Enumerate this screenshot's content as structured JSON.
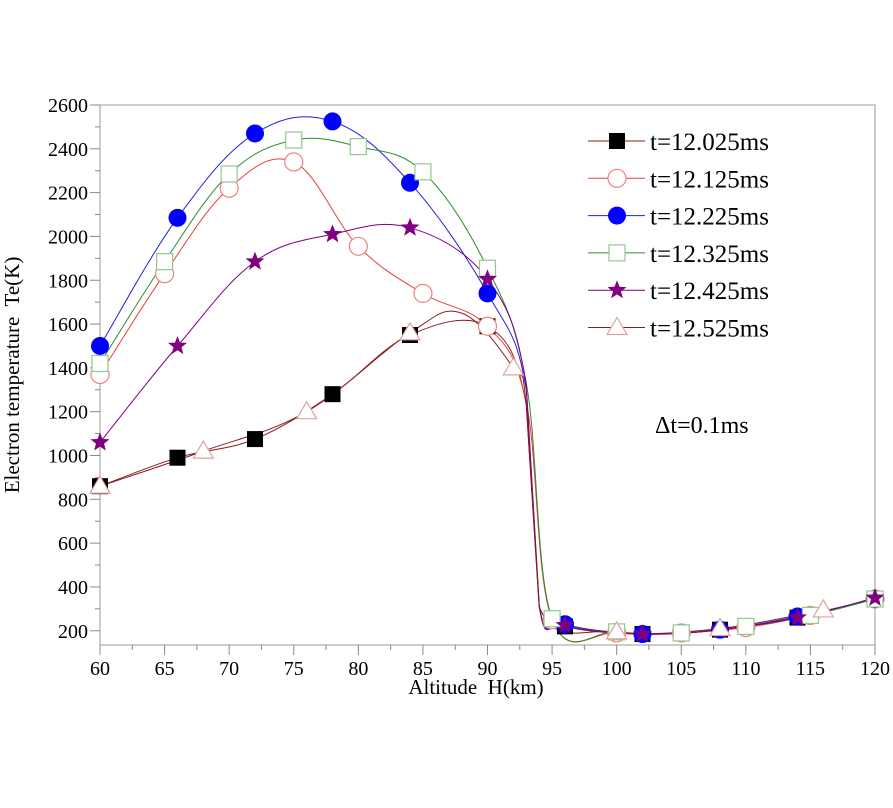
{
  "chart_data": {
    "type": "line",
    "xlabel": "Altitude  H(km)",
    "ylabel": "Electron temperature  Te(K)",
    "xlim": [
      60,
      120
    ],
    "ylim": [
      135,
      2600
    ],
    "xticks": [
      60,
      65,
      70,
      75,
      80,
      85,
      90,
      95,
      100,
      105,
      110,
      115,
      120
    ],
    "yticks": [
      200,
      400,
      600,
      800,
      1000,
      1200,
      1400,
      1600,
      1800,
      2000,
      2200,
      2400,
      2600
    ],
    "grid": false,
    "legend_position": "top-right",
    "annotation": "Δt=0.1ms",
    "series": [
      {
        "name": "t=12.025ms",
        "color": "#8b1a1a",
        "marker": "filled-square",
        "markerColor": "#000000",
        "x": [
          60,
          66,
          72,
          78,
          84,
          90,
          96,
          102,
          108,
          114,
          120
        ],
        "y": [
          860,
          990,
          1075,
          1280,
          1550,
          1590,
          220,
          185,
          205,
          260,
          345
        ],
        "knots": [
          [
            93,
            1230
          ],
          [
            94,
            310
          ]
        ]
      },
      {
        "name": "t=12.125ms",
        "color": "#e8403a",
        "marker": "open-circle",
        "markerColor": "#f08080",
        "x": [
          60,
          65,
          70,
          75,
          80,
          85,
          90,
          95,
          100,
          105,
          110,
          115,
          120
        ],
        "y": [
          1370,
          1830,
          2220,
          2340,
          1955,
          1740,
          1590,
          250,
          190,
          190,
          215,
          270,
          345
        ],
        "knots": [
          [
            93,
            1240
          ]
        ]
      },
      {
        "name": "t=12.225ms",
        "color": "#2020e0",
        "marker": "filled-circle",
        "markerColor": "#0000ff",
        "x": [
          60,
          66,
          72,
          78,
          84,
          90,
          96,
          102,
          108,
          114,
          120
        ],
        "y": [
          1500,
          2085,
          2470,
          2525,
          2245,
          1740,
          230,
          185,
          205,
          265,
          345
        ],
        "knots": [
          [
            93,
            1300
          ],
          [
            94,
            320
          ]
        ]
      },
      {
        "name": "t=12.325ms",
        "color": "#2e8b2e",
        "marker": "open-square",
        "markerColor": "#90c890",
        "x": [
          60,
          65,
          70,
          75,
          80,
          85,
          90,
          95,
          100,
          105,
          110,
          115,
          120
        ],
        "y": [
          1420,
          1885,
          2285,
          2440,
          2410,
          2295,
          1855,
          255,
          195,
          190,
          220,
          270,
          345
        ],
        "knots": [
          [
            93,
            1330
          ]
        ]
      },
      {
        "name": "t=12.425ms",
        "color": "#800080",
        "marker": "star",
        "markerColor": "#800080",
        "x": [
          60,
          66,
          72,
          78,
          84,
          90,
          96,
          102,
          108,
          114,
          120
        ],
        "y": [
          1060,
          1500,
          1885,
          2010,
          2040,
          1805,
          225,
          185,
          205,
          260,
          350
        ],
        "knots": [
          [
            93,
            1320
          ],
          [
            94,
            320
          ]
        ]
      },
      {
        "name": "t=12.525ms",
        "color": "#8b1a1a",
        "marker": "open-triangle",
        "markerColor": "#e0a0a0",
        "x": [
          60,
          68,
          76,
          84,
          92,
          100,
          108,
          116
        ],
        "y": [
          860,
          1020,
          1200,
          1560,
          1400,
          195,
          210,
          295
        ],
        "knots": [
          [
            88,
            1650
          ],
          [
            93,
            1230
          ],
          [
            94,
            310
          ]
        ]
      }
    ]
  }
}
